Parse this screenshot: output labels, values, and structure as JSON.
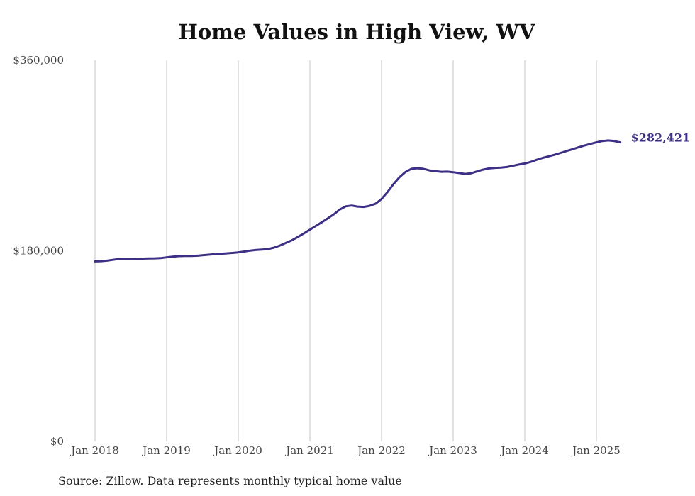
{
  "chart_data": {
    "type": "line",
    "title": "Home Values in High View, WV",
    "source": "Source: Zillow. Data represents monthly typical home value",
    "xlabel": "",
    "ylabel": "",
    "ylim": [
      0,
      360000
    ],
    "y_ticks": [
      {
        "value": 0,
        "label": "$0"
      },
      {
        "value": 180000,
        "label": "$180,000"
      },
      {
        "value": 360000,
        "label": "$360,000"
      }
    ],
    "x_ticks": [
      {
        "date": "2018-01",
        "label": "Jan 2018"
      },
      {
        "date": "2019-01",
        "label": "Jan 2019"
      },
      {
        "date": "2020-01",
        "label": "Jan 2020"
      },
      {
        "date": "2021-01",
        "label": "Jan 2021"
      },
      {
        "date": "2022-01",
        "label": "Jan 2022"
      },
      {
        "date": "2023-01",
        "label": "Jan 2023"
      },
      {
        "date": "2024-01",
        "label": "Jan 2024"
      },
      {
        "date": "2025-01",
        "label": "Jan 2025"
      }
    ],
    "xlim": [
      "2018-01",
      "2025-05"
    ],
    "grid": {
      "vertical": true,
      "horizontal": false
    },
    "series": [
      {
        "color": "#3b2f86",
        "end_label": "$282,421",
        "points": [
          [
            "2018-01",
            170000
          ],
          [
            "2018-02",
            170200
          ],
          [
            "2018-03",
            170700
          ],
          [
            "2018-04",
            171500
          ],
          [
            "2018-05",
            172300
          ],
          [
            "2018-06",
            172500
          ],
          [
            "2018-07",
            172400
          ],
          [
            "2018-08",
            172300
          ],
          [
            "2018-09",
            172600
          ],
          [
            "2018-10",
            172800
          ],
          [
            "2018-11",
            172900
          ],
          [
            "2018-12",
            173100
          ],
          [
            "2019-01",
            173800
          ],
          [
            "2019-02",
            174500
          ],
          [
            "2019-03",
            175000
          ],
          [
            "2019-04",
            175100
          ],
          [
            "2019-05",
            175100
          ],
          [
            "2019-06",
            175300
          ],
          [
            "2019-07",
            175800
          ],
          [
            "2019-08",
            176300
          ],
          [
            "2019-09",
            176800
          ],
          [
            "2019-10",
            177200
          ],
          [
            "2019-11",
            177600
          ],
          [
            "2019-12",
            178000
          ],
          [
            "2020-01",
            178500
          ],
          [
            "2020-02",
            179300
          ],
          [
            "2020-03",
            180200
          ],
          [
            "2020-04",
            180800
          ],
          [
            "2020-05",
            181200
          ],
          [
            "2020-06",
            181700
          ],
          [
            "2020-07",
            183000
          ],
          [
            "2020-08",
            185000
          ],
          [
            "2020-09",
            187500
          ],
          [
            "2020-10",
            190000
          ],
          [
            "2020-11",
            193200
          ],
          [
            "2020-12",
            196500
          ],
          [
            "2021-01",
            200000
          ],
          [
            "2021-02",
            203500
          ],
          [
            "2021-03",
            207000
          ],
          [
            "2021-04",
            210800
          ],
          [
            "2021-05",
            214500
          ],
          [
            "2021-06",
            219000
          ],
          [
            "2021-07",
            222000
          ],
          [
            "2021-08",
            222800
          ],
          [
            "2021-09",
            221800
          ],
          [
            "2021-10",
            221500
          ],
          [
            "2021-11",
            222500
          ],
          [
            "2021-12",
            224500
          ],
          [
            "2022-01",
            229000
          ],
          [
            "2022-02",
            235500
          ],
          [
            "2022-03",
            243000
          ],
          [
            "2022-04",
            249500
          ],
          [
            "2022-05",
            254500
          ],
          [
            "2022-06",
            257500
          ],
          [
            "2022-07",
            258000
          ],
          [
            "2022-08",
            257500
          ],
          [
            "2022-09",
            256000
          ],
          [
            "2022-10",
            255200
          ],
          [
            "2022-11",
            254700
          ],
          [
            "2022-12",
            254800
          ],
          [
            "2023-01",
            254300
          ],
          [
            "2023-02",
            253500
          ],
          [
            "2023-03",
            252700
          ],
          [
            "2023-04",
            253300
          ],
          [
            "2023-05",
            255000
          ],
          [
            "2023-06",
            256700
          ],
          [
            "2023-07",
            257800
          ],
          [
            "2023-08",
            258400
          ],
          [
            "2023-09",
            258600
          ],
          [
            "2023-10",
            259200
          ],
          [
            "2023-11",
            260300
          ],
          [
            "2023-12",
            261500
          ],
          [
            "2024-01",
            262500
          ],
          [
            "2024-02",
            264000
          ],
          [
            "2024-03",
            266000
          ],
          [
            "2024-04",
            267800
          ],
          [
            "2024-05",
            269300
          ],
          [
            "2024-06",
            270800
          ],
          [
            "2024-07",
            272500
          ],
          [
            "2024-08",
            274300
          ],
          [
            "2024-09",
            276000
          ],
          [
            "2024-10",
            277800
          ],
          [
            "2024-11",
            279500
          ],
          [
            "2024-12",
            281000
          ],
          [
            "2025-01",
            282500
          ],
          [
            "2025-02",
            283800
          ],
          [
            "2025-03",
            284300
          ],
          [
            "2025-04",
            283700
          ],
          [
            "2025-05",
            282421
          ]
        ]
      }
    ]
  }
}
